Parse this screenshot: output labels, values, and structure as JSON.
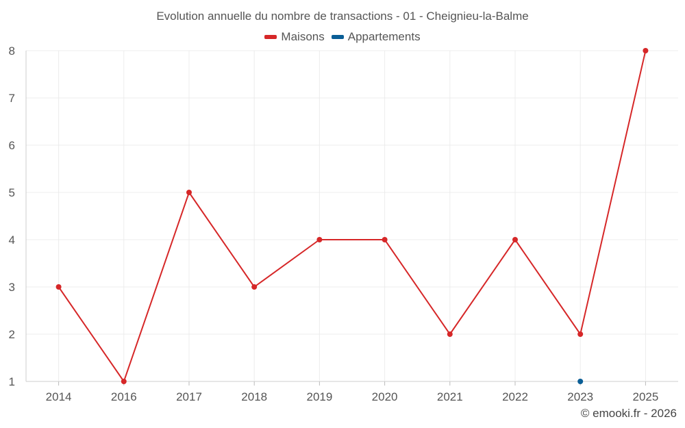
{
  "chart_data": {
    "type": "line",
    "title": "Evolution annuelle du nombre de transactions - 01 - Cheignieu-la-Balme",
    "categories": [
      "2014",
      "2016",
      "2017",
      "2018",
      "2019",
      "2020",
      "2021",
      "2022",
      "2023",
      "2025"
    ],
    "series": [
      {
        "name": "Maisons",
        "color": "#d62728",
        "values": [
          3,
          1,
          5,
          3,
          4,
          4,
          2,
          4,
          2,
          8
        ]
      },
      {
        "name": "Appartements",
        "color": "#0a5e96",
        "values": [
          null,
          null,
          null,
          null,
          null,
          null,
          null,
          null,
          1,
          null
        ]
      }
    ],
    "ylim": [
      1,
      8
    ],
    "yticks": [
      1,
      2,
      3,
      4,
      5,
      6,
      7,
      8
    ],
    "grid": true,
    "legend_position": "top-center"
  },
  "credit": "© emooki.fr - 2026"
}
